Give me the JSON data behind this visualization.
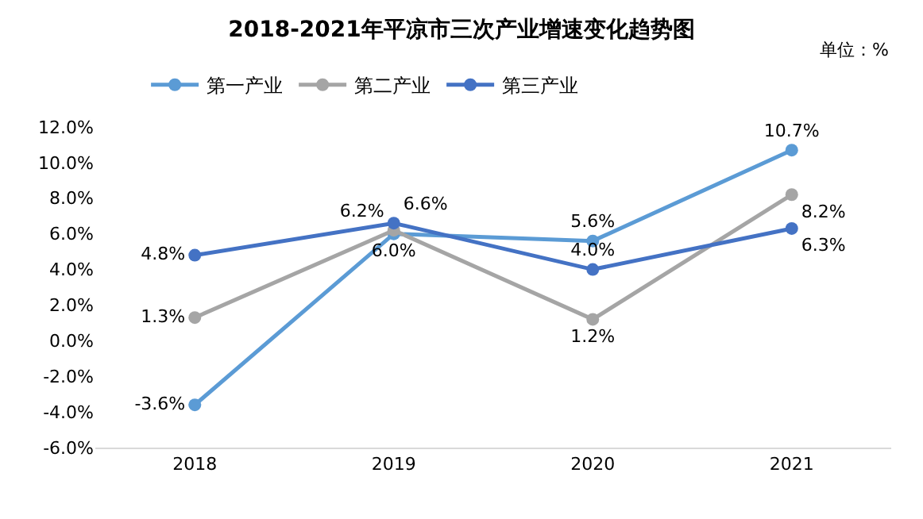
{
  "chart_data": {
    "type": "line",
    "title": "2018-2021年平凉市三次产业增速变化趋势图",
    "annotations": [
      "单位：%"
    ],
    "categories": [
      "2018",
      "2019",
      "2020",
      "2021"
    ],
    "series": [
      {
        "name": "第一产业",
        "color": "#5b9bd5",
        "values": [
          -3.6,
          6.0,
          5.6,
          10.7
        ],
        "value_labels": [
          "-3.6%",
          "6.0%",
          "5.6%",
          "10.7%"
        ]
      },
      {
        "name": "第二产业",
        "color": "#a5a5a5",
        "values": [
          1.3,
          6.2,
          1.2,
          8.2
        ],
        "value_labels": [
          "1.3%",
          "6.2%",
          "1.2%",
          "8.2%"
        ]
      },
      {
        "name": "第三产业",
        "color": "#4472c4",
        "values": [
          4.8,
          6.6,
          4.0,
          6.3
        ],
        "value_labels": [
          "4.8%",
          "6.6%",
          "4.0%",
          "6.3%"
        ]
      }
    ],
    "ylim": [
      -6,
      12
    ],
    "yticks": [
      {
        "value": -6,
        "label": "-6.0%"
      },
      {
        "value": -4,
        "label": "-4.0%"
      },
      {
        "value": -2,
        "label": "-2.0%"
      },
      {
        "value": 0,
        "label": "0.0%"
      },
      {
        "value": 2,
        "label": "2.0%"
      },
      {
        "value": 4,
        "label": "4.0%"
      },
      {
        "value": 6,
        "label": "6.0%"
      },
      {
        "value": 8,
        "label": "8.0%"
      },
      {
        "value": 10,
        "label": "10.0%"
      },
      {
        "value": 12,
        "label": "12.0%"
      }
    ],
    "legend": "top",
    "marker": "circle",
    "line_style": "solid"
  }
}
